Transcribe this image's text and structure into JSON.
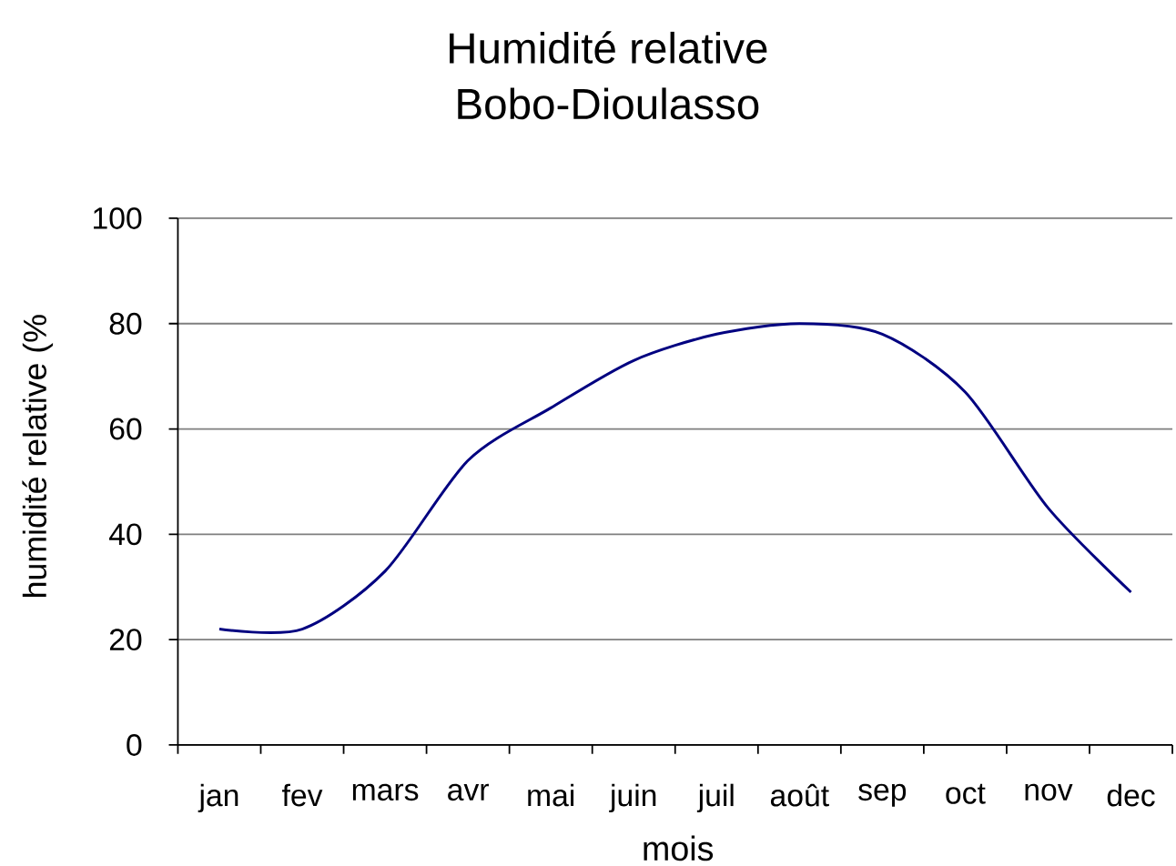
{
  "chart_data": {
    "type": "line",
    "title": "Humidité relative",
    "subtitle": "Bobo-Dioulasso",
    "xlabel": "mois",
    "ylabel": "humidité relative (%",
    "categories": [
      "jan",
      "fev",
      "mars",
      "avr",
      "mai",
      "juin",
      "juil",
      "août",
      "sep",
      "oct",
      "nov",
      "dec"
    ],
    "values": [
      22,
      22,
      33,
      54,
      64,
      73,
      78,
      80,
      78,
      67,
      45,
      29
    ],
    "color": "#000080",
    "ylim": [
      0,
      100
    ],
    "yticks": [
      0,
      20,
      40,
      60,
      80,
      100
    ],
    "grid": "y"
  }
}
